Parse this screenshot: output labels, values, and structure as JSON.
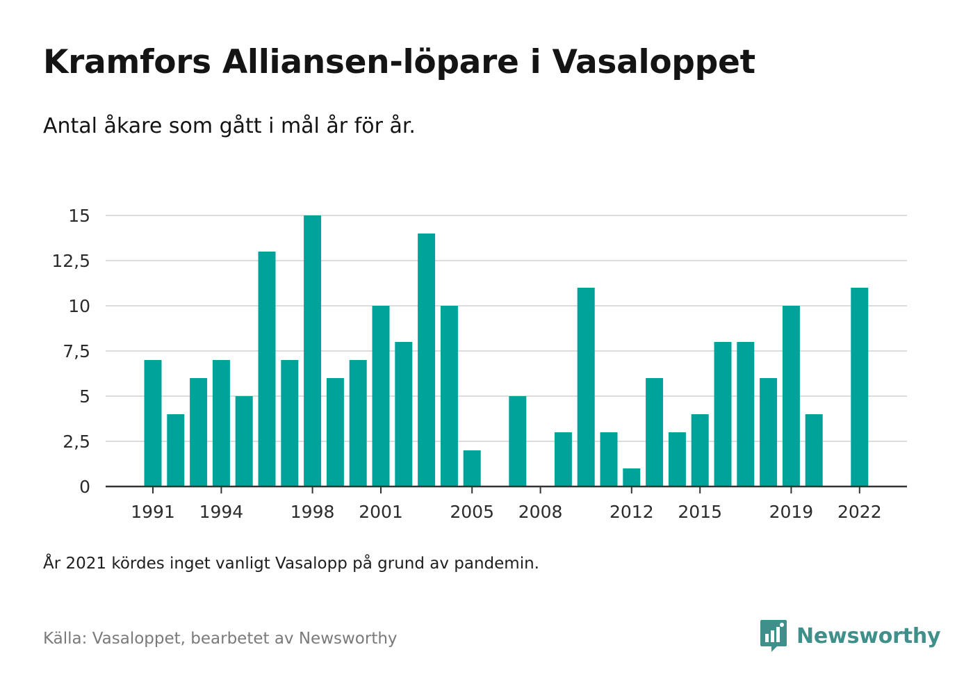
{
  "title": "Kramfors Alliansen-löpare i Vasaloppet",
  "subtitle": "Antal åkare som gått i mål år för år.",
  "note": "År 2021 kördes inget vanligt Vasalopp på grund av pandemin.",
  "source": "Källa: Vasaloppet, bearbetet av Newsworthy",
  "brand": {
    "name": "Newsworthy",
    "color": "#3f8f8a"
  },
  "chart_data": {
    "type": "bar",
    "bar_color": "#00a39a",
    "x": [
      1991,
      1992,
      1993,
      1994,
      1995,
      1996,
      1997,
      1998,
      1999,
      2000,
      2001,
      2002,
      2003,
      2004,
      2005,
      2006,
      2007,
      2008,
      2009,
      2010,
      2011,
      2012,
      2013,
      2014,
      2015,
      2016,
      2017,
      2018,
      2019,
      2020,
      2021,
      2022
    ],
    "values": [
      7,
      4,
      6,
      7,
      5,
      13,
      7,
      15,
      6,
      7,
      10,
      8,
      14,
      10,
      2,
      null,
      5,
      null,
      3,
      11,
      3,
      1,
      6,
      3,
      4,
      8,
      8,
      6,
      10,
      4,
      null,
      11
    ],
    "ylim": [
      0,
      15
    ],
    "yticks": [
      0,
      2.5,
      5,
      7.5,
      10,
      12.5,
      15
    ],
    "ytick_labels": [
      "0",
      "2,5",
      "5",
      "7,5",
      "10",
      "12,5",
      "15"
    ],
    "xticks": [
      1991,
      1994,
      1998,
      2001,
      2005,
      2008,
      2012,
      2015,
      2019,
      2022
    ],
    "xtick_labels": [
      "1991",
      "1994",
      "1998",
      "2001",
      "2005",
      "2008",
      "2012",
      "2015",
      "2019",
      "2022"
    ],
    "grid": true
  }
}
